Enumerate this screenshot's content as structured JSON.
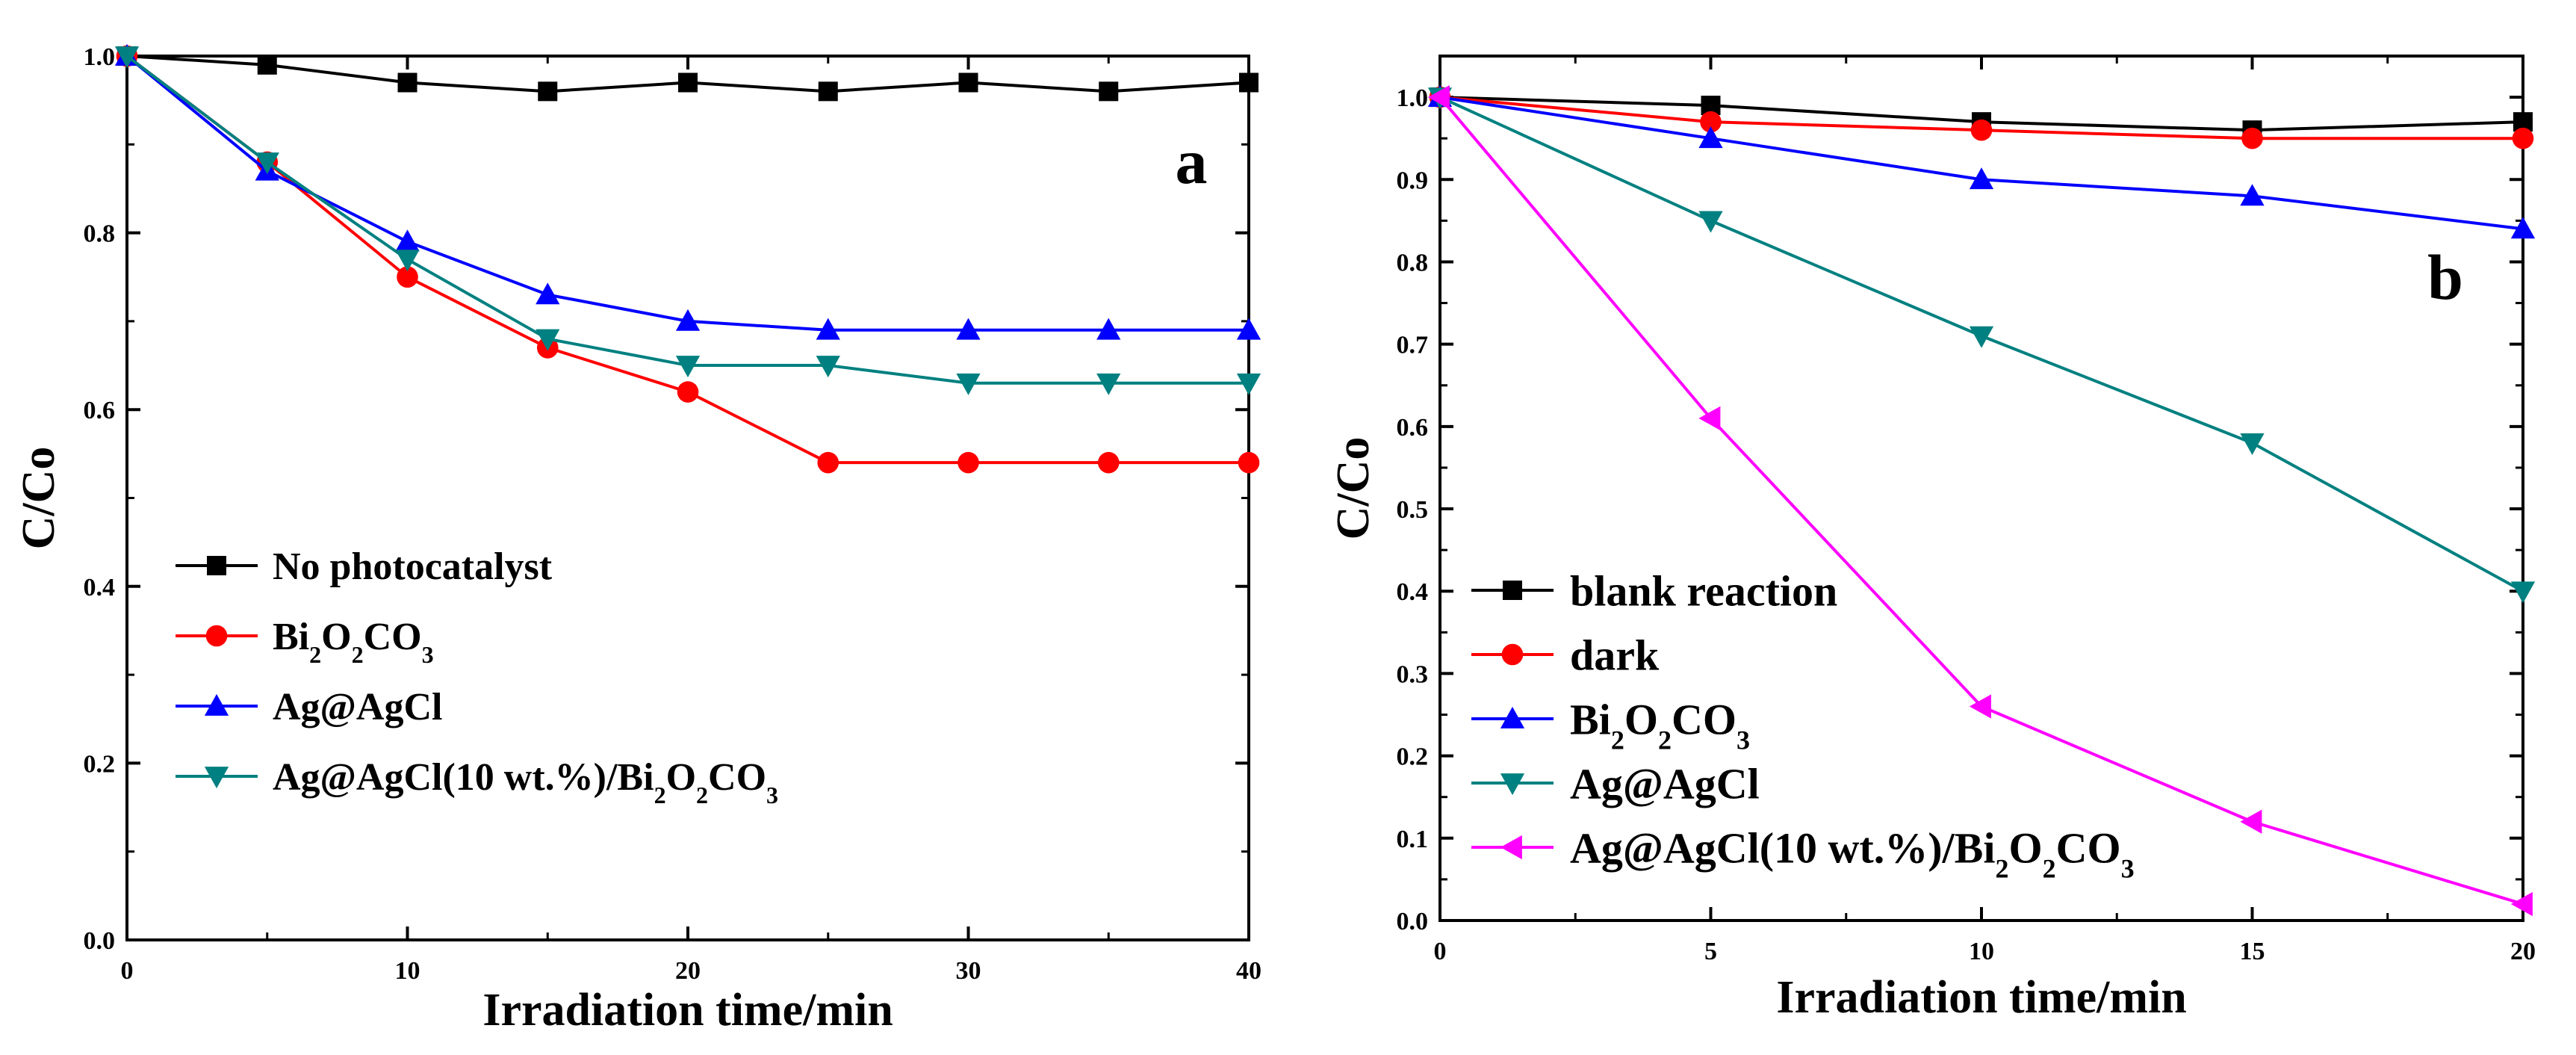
{
  "chart_data": [
    {
      "type": "line",
      "panel_label": "a",
      "xlabel": "Irradiation time/min",
      "ylabel": "C/Co",
      "xlim": [
        0,
        40
      ],
      "ylim": [
        0.0,
        1.0
      ],
      "x_ticks": [
        0,
        10,
        20,
        30,
        40
      ],
      "x_tick_labels": [
        "0",
        "10",
        "20",
        "30",
        "40"
      ],
      "y_ticks": [
        0.0,
        0.2,
        0.4,
        0.6,
        0.8,
        1.0
      ],
      "y_tick_labels": [
        "0.0",
        "0.2",
        "0.4",
        "0.6",
        "0.8",
        "1.0"
      ],
      "legend_position": "lower-left",
      "x": [
        0,
        5,
        10,
        15,
        20,
        25,
        30,
        35,
        40
      ],
      "series": [
        {
          "name": "No photocatalyst",
          "legend": [
            {
              "t": "No photocatalyst"
            }
          ],
          "color": "#000000",
          "marker": "square",
          "values": [
            1.0,
            0.99,
            0.97,
            0.96,
            0.97,
            0.96,
            0.97,
            0.96,
            0.97
          ]
        },
        {
          "name": "Bi2O2CO3",
          "legend": [
            {
              "t": "Bi"
            },
            {
              "t": "2",
              "sub": true
            },
            {
              "t": "O"
            },
            {
              "t": "2",
              "sub": true
            },
            {
              "t": "CO"
            },
            {
              "t": "3",
              "sub": true
            }
          ],
          "color": "#ff0000",
          "marker": "circle",
          "values": [
            1.0,
            0.88,
            0.75,
            0.67,
            0.62,
            0.54,
            0.54,
            0.54,
            0.54
          ]
        },
        {
          "name": "Ag@AgCl",
          "legend": [
            {
              "t": "Ag@AgCl"
            }
          ],
          "color": "#0000ff",
          "marker": "triangle-up",
          "values": [
            1.0,
            0.87,
            0.79,
            0.73,
            0.7,
            0.69,
            0.69,
            0.69,
            0.69
          ]
        },
        {
          "name": "Ag@AgCl(10 wt.%)/Bi2O2CO3",
          "legend": [
            {
              "t": "Ag@AgCl(10 wt.%)/Bi"
            },
            {
              "t": "2",
              "sub": true
            },
            {
              "t": "O"
            },
            {
              "t": "2",
              "sub": true
            },
            {
              "t": "CO"
            },
            {
              "t": "3",
              "sub": true
            }
          ],
          "color": "#008080",
          "marker": "triangle-down",
          "values": [
            1.0,
            0.88,
            0.77,
            0.68,
            0.65,
            0.65,
            0.63,
            0.63,
            0.63
          ]
        }
      ]
    },
    {
      "type": "line",
      "panel_label": "b",
      "xlabel": "Irradiation time/min",
      "ylabel": "C/Co",
      "xlim": [
        0,
        20
      ],
      "ylim": [
        0.0,
        1.05
      ],
      "x_ticks": [
        0,
        5,
        10,
        15,
        20
      ],
      "x_tick_labels": [
        "0",
        "5",
        "10",
        "15",
        "20"
      ],
      "y_ticks": [
        0.0,
        0.1,
        0.2,
        0.3,
        0.4,
        0.5,
        0.6,
        0.7,
        0.8,
        0.9,
        1.0
      ],
      "y_tick_labels": [
        "0.0",
        "0.1",
        "0.2",
        "0.3",
        "0.4",
        "0.5",
        "0.6",
        "0.7",
        "0.8",
        "0.9",
        "1.0"
      ],
      "legend_position": "lower-left",
      "x": [
        0,
        5,
        10,
        15,
        20
      ],
      "series": [
        {
          "name": "blank reaction",
          "legend": [
            {
              "t": "blank reaction"
            }
          ],
          "color": "#000000",
          "marker": "square",
          "values": [
            1.0,
            0.99,
            0.97,
            0.96,
            0.97
          ]
        },
        {
          "name": "dark",
          "legend": [
            {
              "t": "dark"
            }
          ],
          "color": "#ff0000",
          "marker": "circle",
          "values": [
            1.0,
            0.97,
            0.96,
            0.95,
            0.95
          ]
        },
        {
          "name": "Bi2O2CO3",
          "legend": [
            {
              "t": "Bi"
            },
            {
              "t": "2",
              "sub": true
            },
            {
              "t": "O"
            },
            {
              "t": "2",
              "sub": true
            },
            {
              "t": "CO"
            },
            {
              "t": "3",
              "sub": true
            }
          ],
          "color": "#0000ff",
          "marker": "triangle-up",
          "values": [
            1.0,
            0.95,
            0.9,
            0.88,
            0.84
          ]
        },
        {
          "name": "Ag@AgCl",
          "legend": [
            {
              "t": "Ag@AgCl"
            }
          ],
          "color": "#008080",
          "marker": "triangle-down",
          "values": [
            1.0,
            0.85,
            0.71,
            0.58,
            0.4
          ]
        },
        {
          "name": "Ag@AgCl(10 wt.%)/Bi2O2CO3",
          "legend": [
            {
              "t": "Ag@AgCl(10 wt.%)/Bi"
            },
            {
              "t": "2",
              "sub": true
            },
            {
              "t": "O"
            },
            {
              "t": "2",
              "sub": true
            },
            {
              "t": "CO"
            },
            {
              "t": "3",
              "sub": true
            }
          ],
          "color": "#ff00ff",
          "marker": "triangle-left",
          "values": [
            1.0,
            0.61,
            0.26,
            0.12,
            0.02
          ]
        }
      ]
    }
  ]
}
